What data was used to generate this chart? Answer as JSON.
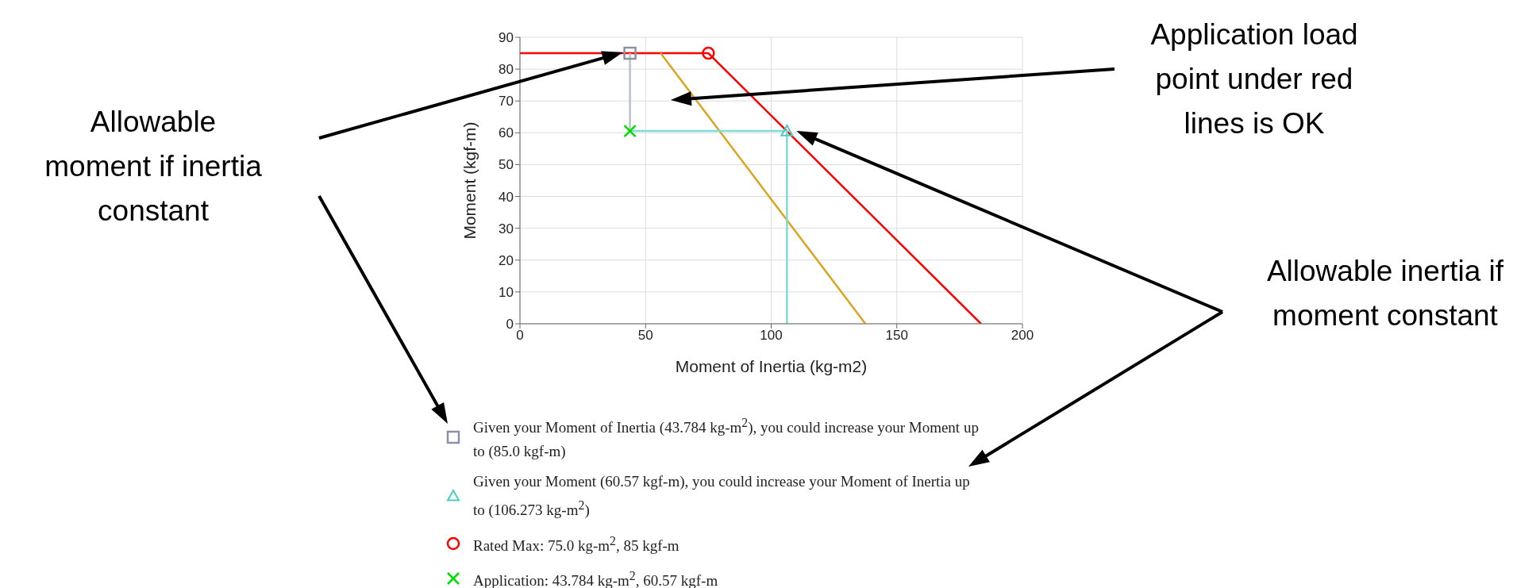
{
  "chart_data": {
    "type": "line",
    "xlabel": "Moment of Inertia (kg-m2)",
    "ylabel": "Moment (kgf-m)",
    "xlim": [
      0,
      200
    ],
    "xticks": [
      0,
      50,
      100,
      150,
      200
    ],
    "ylim": [
      0,
      90
    ],
    "yticks": [
      0,
      10,
      20,
      30,
      40,
      50,
      60,
      70,
      80,
      90
    ],
    "grid": true,
    "legend": "bottom",
    "series": [
      {
        "color": "#ff0000",
        "x": [
          0,
          75,
          183.5
        ],
        "values": [
          85,
          85,
          0
        ]
      },
      {
        "color": "#daa520",
        "x": [
          56,
          137.5
        ],
        "values": [
          85,
          0
        ]
      },
      {
        "color": "#b8c0cc",
        "x": [
          43.784,
          43.784
        ],
        "values": [
          85,
          60.57
        ]
      },
      {
        "color": "#80dcd6",
        "x": [
          43.784,
          106.273,
          106.273
        ],
        "values": [
          60.57,
          60.57,
          0
        ]
      },
      {
        "type": "scatter",
        "name": "Given your Moment of Inertia (43.784 kg-m$^{2}$), you could increase your Moment up to (85.0 kgf-m)",
        "color": "#8894a4",
        "x": [
          43.784
        ],
        "values": [
          85
        ],
        "marker": "square"
      },
      {
        "type": "scatter",
        "name": "Given your Moment (60.57 kgf-m), you could increase your Moment of Inertia up to (106.273 kg-m$^{2}$)",
        "color": "#48cdc4",
        "x": [
          106.273
        ],
        "values": [
          60.57
        ],
        "marker": "triangle"
      },
      {
        "type": "scatter",
        "name": "Rated Max: 75.0 kg-m$^{2}$, 85 kgf-m",
        "color": "#ff0000",
        "x": [
          75
        ],
        "values": [
          85
        ],
        "marker": "circle"
      },
      {
        "type": "scatter",
        "name": "Application: 43.784 kg-m$^{2}$, 60.57 kgf-m",
        "color": "#00dd00",
        "x": [
          43.784
        ],
        "values": [
          60.57
        ],
        "marker": "cross"
      }
    ],
    "annotations": [
      "Allowable moment if inertia constant",
      "Application load point under red lines is OK",
      "Allowable inertia if moment constant"
    ]
  }
}
